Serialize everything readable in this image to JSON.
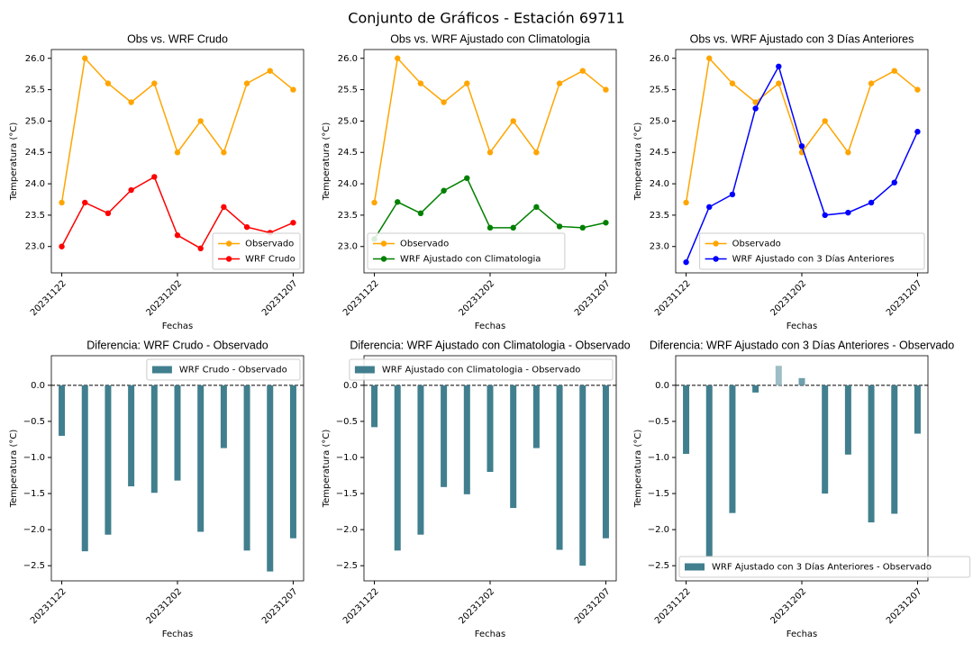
{
  "title": "Conjunto de Gráficos - Estación 69711",
  "chart_data": [
    {
      "type": "line",
      "title": "Obs vs. WRF Crudo",
      "xlabel": "Fechas",
      "ylabel": "Temperatura (°C)",
      "categories": [
        "20231122",
        null,
        null,
        null,
        null,
        "20231202",
        null,
        null,
        null,
        null,
        "20231207"
      ],
      "series": [
        {
          "name": "Observado",
          "color": "#FFA500",
          "values": [
            23.7,
            26.0,
            25.6,
            25.3,
            25.6,
            24.5,
            25.0,
            24.5,
            25.6,
            25.8,
            25.5
          ]
        },
        {
          "name": "WRF Crudo",
          "color": "#FF0000",
          "values": [
            23.0,
            23.7,
            23.53,
            23.9,
            24.11,
            23.18,
            22.97,
            23.63,
            23.31,
            23.22,
            23.38
          ]
        }
      ],
      "ylim": [
        22.58,
        26.14
      ],
      "yticks": [
        {
          "value": 23,
          "label": "23.0"
        },
        {
          "value": 23.5,
          "label": "23.5"
        },
        {
          "value": 24,
          "label": "24.0"
        },
        {
          "value": 24.5,
          "label": "24.5"
        },
        {
          "value": 25,
          "label": "25.0"
        },
        {
          "value": 25.5,
          "label": "25.5"
        },
        {
          "value": 26,
          "label": "26.0"
        }
      ],
      "legend": "lower right"
    },
    {
      "type": "line",
      "title": "Obs vs. WRF Ajustado con Climatologia",
      "xlabel": "Fechas",
      "ylabel": "Temperatura (°C)",
      "categories": [
        "20231122",
        null,
        null,
        null,
        null,
        "20231202",
        null,
        null,
        null,
        null,
        "20231207"
      ],
      "series": [
        {
          "name": "Observado",
          "color": "#FFA500",
          "values": [
            23.7,
            26.0,
            25.6,
            25.3,
            25.6,
            24.5,
            25.0,
            24.5,
            25.6,
            25.8,
            25.5
          ]
        },
        {
          "name": "WRF Ajustado con Climatologia",
          "color": "#008000",
          "values": [
            23.12,
            23.71,
            23.53,
            23.89,
            24.09,
            23.3,
            23.3,
            23.63,
            23.32,
            23.3,
            23.38
          ]
        }
      ],
      "ylim": [
        22.58,
        26.14
      ],
      "yticks": [
        {
          "value": 23,
          "label": "23.0"
        },
        {
          "value": 23.5,
          "label": "23.5"
        },
        {
          "value": 24,
          "label": "24.0"
        },
        {
          "value": 24.5,
          "label": "24.5"
        },
        {
          "value": 25,
          "label": "25.0"
        },
        {
          "value": 25.5,
          "label": "25.5"
        },
        {
          "value": 26,
          "label": "26.0"
        }
      ],
      "legend": "lower left"
    },
    {
      "type": "line",
      "title": "Obs vs. WRF Ajustado con 3 Días Anteriores",
      "xlabel": "Fechas",
      "ylabel": "Temperatura (°C)",
      "categories": [
        "20231122",
        null,
        null,
        null,
        null,
        "20231202",
        null,
        null,
        null,
        null,
        "20231207"
      ],
      "series": [
        {
          "name": "Observado",
          "color": "#FFA500",
          "values": [
            23.7,
            26.0,
            25.6,
            25.3,
            25.6,
            24.5,
            25.0,
            24.5,
            25.6,
            25.8,
            25.5
          ]
        },
        {
          "name": "WRF Ajustado con 3 Días Anteriores",
          "color": "#0000FF",
          "values": [
            22.75,
            23.63,
            23.83,
            25.2,
            25.87,
            24.6,
            23.5,
            23.54,
            23.7,
            24.02,
            24.83
          ]
        }
      ],
      "ylim": [
        22.58,
        26.14
      ],
      "yticks": [
        {
          "value": 23,
          "label": "23.0"
        },
        {
          "value": 23.5,
          "label": "23.5"
        },
        {
          "value": 24,
          "label": "24.0"
        },
        {
          "value": 24.5,
          "label": "24.5"
        },
        {
          "value": 25,
          "label": "25.0"
        },
        {
          "value": 25.5,
          "label": "25.5"
        },
        {
          "value": 26,
          "label": "26.0"
        }
      ],
      "legend": "lower right"
    },
    {
      "type": "bar",
      "title": "Diferencia: WRF Crudo - Observado",
      "xlabel": "Fechas",
      "ylabel": "Temperatura (°C)",
      "categories": [
        "20231122",
        null,
        null,
        null,
        null,
        "20231202",
        null,
        null,
        null,
        null,
        "20231207"
      ],
      "series": [
        {
          "name": "WRF Crudo - Observado",
          "color": "#417f8e",
          "values": [
            -0.7,
            -2.3,
            -2.07,
            -1.4,
            -1.49,
            -1.32,
            -2.03,
            -0.87,
            -2.29,
            -2.58,
            -2.12
          ]
        }
      ],
      "reference_line": 0,
      "ylim": [
        -2.71,
        0.41
      ],
      "yticks": [
        {
          "value": -2.5,
          "label": "−2.5"
        },
        {
          "value": -2,
          "label": "−2.0"
        },
        {
          "value": -1.5,
          "label": "−1.5"
        },
        {
          "value": -1,
          "label": "−1.0"
        },
        {
          "value": -0.5,
          "label": "−0.5"
        },
        {
          "value": 0,
          "label": "0.0"
        }
      ],
      "legend": "upper right"
    },
    {
      "type": "bar",
      "title": "Diferencia: WRF Ajustado con Climatologia - Observado",
      "xlabel": "Fechas",
      "ylabel": "Temperatura (°C)",
      "categories": [
        "20231122",
        null,
        null,
        null,
        null,
        "20231202",
        null,
        null,
        null,
        null,
        "20231207"
      ],
      "series": [
        {
          "name": "WRF Ajustado con Climatologia - Observado",
          "color": "#417f8e",
          "values": [
            -0.58,
            -2.29,
            -2.07,
            -1.41,
            -1.51,
            -1.2,
            -1.7,
            -0.87,
            -2.28,
            -2.5,
            -2.12
          ]
        }
      ],
      "reference_line": 0,
      "ylim": [
        -2.71,
        0.41
      ],
      "yticks": [
        {
          "value": -2.5,
          "label": "−2.5"
        },
        {
          "value": -2,
          "label": "−2.0"
        },
        {
          "value": -1.5,
          "label": "−1.5"
        },
        {
          "value": -1,
          "label": "−1.0"
        },
        {
          "value": -0.5,
          "label": "−0.5"
        },
        {
          "value": 0,
          "label": "0.0"
        }
      ],
      "legend": "upper right"
    },
    {
      "type": "bar",
      "title": "Diferencia: WRF Ajustado con 3 Días Anteriores - Observado",
      "xlabel": "Fechas",
      "ylabel": "Temperatura (°C)",
      "categories": [
        "20231122",
        null,
        null,
        null,
        null,
        "20231202",
        null,
        null,
        null,
        null,
        "20231207"
      ],
      "series": [
        {
          "name": "WRF Ajustado con 3 Días Anteriores - Observado",
          "color": "#417f8e",
          "values": [
            -0.95,
            -2.37,
            -1.77,
            -0.1,
            0.27,
            0.1,
            -1.5,
            -0.96,
            -1.9,
            -1.78,
            -0.67
          ],
          "colors": [
            "#417f8e",
            "#417f8e",
            "#417f8e",
            "#417f8e",
            "#9ebdc4",
            "#6f9fab",
            "#417f8e",
            "#417f8e",
            "#417f8e",
            "#417f8e",
            "#417f8e"
          ]
        }
      ],
      "reference_line": 0,
      "ylim": [
        -2.71,
        0.41
      ],
      "yticks": [
        {
          "value": -2.5,
          "label": "−2.5"
        },
        {
          "value": -2,
          "label": "−2.0"
        },
        {
          "value": -1.5,
          "label": "−1.5"
        },
        {
          "value": -1,
          "label": "−1.0"
        },
        {
          "value": -0.5,
          "label": "−0.5"
        },
        {
          "value": 0,
          "label": "0.0"
        }
      ],
      "legend": "lower left"
    }
  ]
}
